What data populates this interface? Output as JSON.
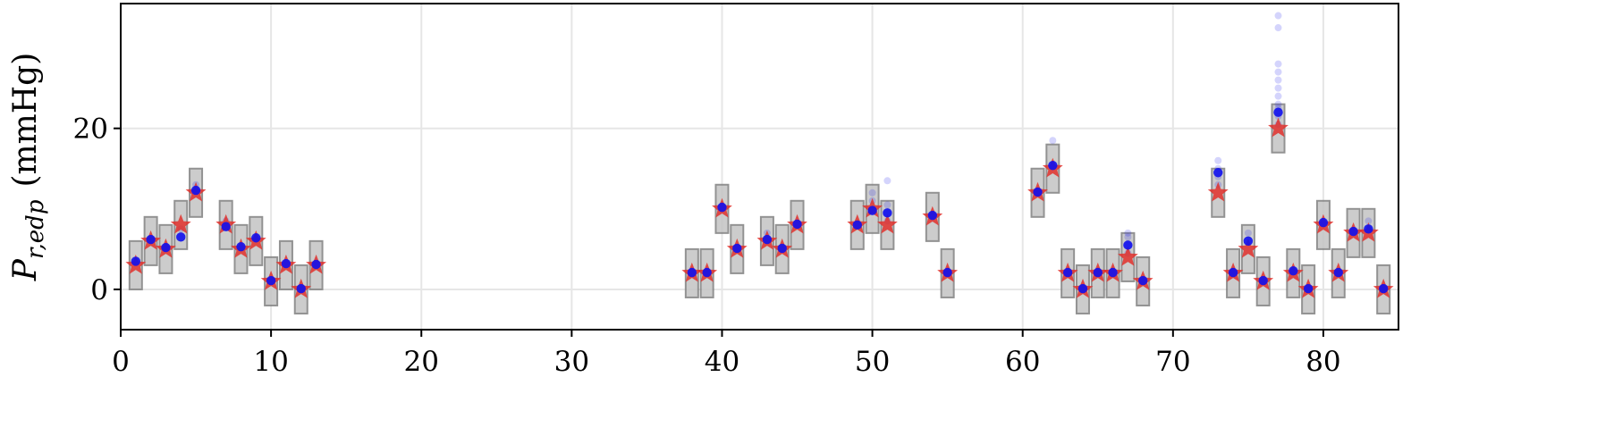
{
  "chart_data": {
    "type": "scatter",
    "title": "",
    "xlabel": "",
    "ylabel": "P_{r,edp} (mmHg)",
    "ylabel_parts": {
      "main": "P",
      "sub": "r,edp",
      "unit": "(mmHg)"
    },
    "xlim": [
      0,
      85
    ],
    "ylim": [
      -5,
      35.5
    ],
    "xticks": [
      0,
      10,
      20,
      30,
      40,
      50,
      60,
      70,
      80
    ],
    "yticks": [
      0,
      20
    ],
    "grid": true,
    "colors": {
      "star": "#e0302c",
      "point": "#1010ee",
      "box_fill": "#c4c4c4",
      "box_edge": "#808080",
      "grid": "#e6e6e6"
    },
    "series": [
      {
        "name": "",
        "marker": "star",
        "x": [
          1,
          2,
          3,
          4,
          5,
          7,
          8,
          9,
          10,
          11,
          12,
          13,
          38,
          39,
          40,
          41,
          43,
          44,
          45,
          49,
          50,
          51,
          54,
          55,
          61,
          62,
          63,
          64,
          65,
          66,
          67,
          68,
          73,
          74,
          75,
          76,
          77,
          78,
          79,
          80,
          81,
          82,
          83,
          84
        ],
        "y": [
          3,
          6,
          5,
          8,
          12,
          8,
          5,
          6,
          1,
          3,
          0,
          3,
          2,
          2,
          10,
          5,
          6,
          5,
          8,
          8,
          10,
          8,
          9,
          2,
          12,
          15,
          2,
          0,
          2,
          2,
          4,
          1,
          12,
          2,
          5,
          1,
          20,
          2,
          0,
          8,
          2,
          7,
          7,
          0
        ]
      },
      {
        "name": "",
        "marker": "circle",
        "x": [
          1,
          2,
          3,
          4,
          5,
          7,
          8,
          9,
          10,
          11,
          12,
          13,
          38,
          39,
          40,
          41,
          43,
          44,
          45,
          49,
          50,
          51,
          54,
          55,
          61,
          62,
          63,
          64,
          65,
          66,
          67,
          68,
          73,
          74,
          75,
          76,
          77,
          78,
          79,
          80,
          81,
          82,
          83,
          84
        ],
        "y": [
          3.5,
          6.2,
          5.2,
          6.5,
          12.3,
          7.8,
          5.3,
          6.4,
          1.1,
          3.2,
          0.1,
          3.1,
          2.1,
          2.1,
          10.2,
          5.1,
          6.2,
          5.1,
          8.1,
          8.0,
          9.8,
          9.5,
          9.2,
          2.1,
          12.1,
          15.4,
          2.1,
          0.1,
          2.1,
          2.1,
          5.5,
          1.1,
          14.5,
          2.1,
          6.0,
          1.1,
          22.0,
          2.3,
          0.1,
          8.3,
          2.1,
          7.2,
          7.5,
          0.1
        ]
      },
      {
        "name": "",
        "marker": "circle-faint",
        "x": [
          4,
          5,
          7,
          43,
          50,
          50,
          51,
          51,
          51,
          51,
          62,
          67,
          67,
          67,
          67,
          73,
          73,
          73,
          73,
          75,
          77,
          77,
          77,
          77,
          77,
          77,
          77,
          77,
          77,
          77,
          77,
          83
        ],
        "y": [
          7.5,
          13.0,
          8.5,
          7.0,
          11.0,
          12.0,
          8.5,
          9.5,
          10.5,
          13.5,
          18.5,
          4.5,
          5.5,
          6.5,
          7.0,
          13.0,
          14.0,
          15.0,
          16.0,
          7.0,
          23.0,
          24.0,
          25.0,
          26.0,
          27.0,
          28.0,
          20.5,
          21.5,
          22.5,
          32.5,
          34.0,
          8.5
        ]
      }
    ]
  }
}
